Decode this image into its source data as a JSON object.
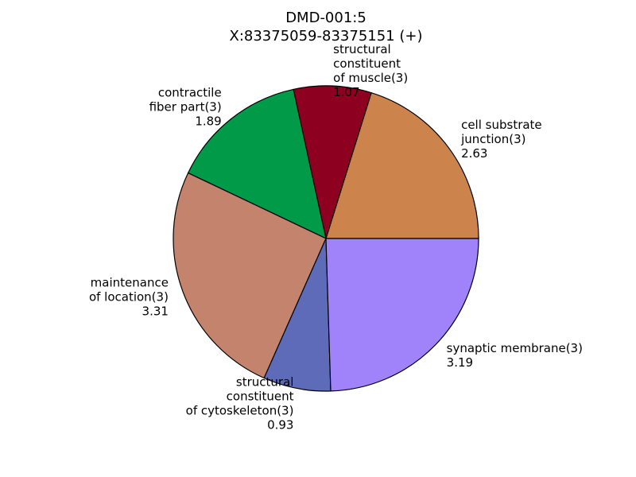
{
  "chart_data": {
    "type": "pie",
    "title": [
      "DMD-001:5",
      "X:83375059-83375151 (+)"
    ],
    "start_angle_deg": 0,
    "direction": "counterclockwise",
    "slices": [
      {
        "label": [
          "cell substrate",
          "junction(3)"
        ],
        "value": 2.63,
        "value_text": "2.63",
        "color": "#cd834c"
      },
      {
        "label": [
          "structural",
          "constituent",
          "of muscle(3)"
        ],
        "value": 1.07,
        "value_text": "1.07",
        "color": "#8e001f"
      },
      {
        "label": [
          "contractile",
          "fiber part(3)"
        ],
        "value": 1.89,
        "value_text": "1.89",
        "color": "#009a49"
      },
      {
        "label": [
          "maintenance",
          "of location(3)"
        ],
        "value": 3.31,
        "value_text": "3.31",
        "color": "#c3836d"
      },
      {
        "label": [
          "structural",
          "constituent",
          "of cytoskeleton(3)"
        ],
        "value": 0.93,
        "value_text": "0.93",
        "color": "#5e6bb8"
      },
      {
        "label": [
          "synaptic membrane(3)"
        ],
        "value": 3.19,
        "value_text": "3.19",
        "color": "#a082fb"
      }
    ]
  }
}
